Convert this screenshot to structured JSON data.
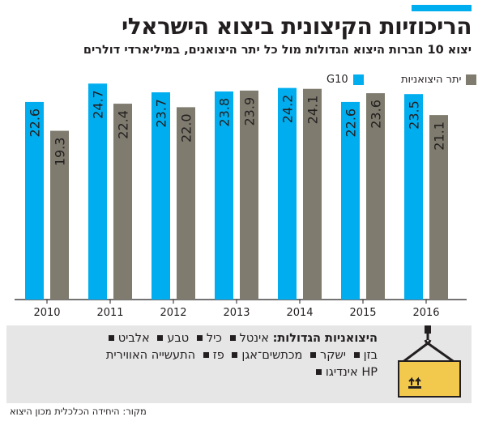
{
  "header": {
    "title": "הריכוזיות הקיצונית ביצוא הישראלי",
    "subtitle": "יצוא 10 חברות היצוא הגדולות מול כל יתר היצואנים, במיליארדי דולרים"
  },
  "colors": {
    "accent": "#00aeef",
    "series_g10": "#00aeef",
    "series_other": "#7f7b6e",
    "panel": "#e6e6e6",
    "crate": "#f2c94c"
  },
  "chart_data": {
    "type": "bar",
    "title": "הריכוזיות הקיצונית ביצוא הישראלי",
    "subtitle": "יצוא 10 חברות היצוא הגדולות מול כל יתר היצואנים, במיליארדי דולרים",
    "categories": [
      "2010",
      "2011",
      "2012",
      "2013",
      "2014",
      "2015",
      "2016"
    ],
    "series": [
      {
        "name": "G10",
        "values": [
          22.6,
          24.7,
          23.7,
          23.8,
          24.2,
          22.6,
          23.5
        ]
      },
      {
        "name": "יתר היצואניות",
        "values": [
          19.3,
          22.4,
          22.0,
          23.9,
          24.1,
          23.6,
          21.1
        ]
      }
    ],
    "ylim": [
      0,
      26
    ],
    "grid": false,
    "legend_position": "top-right"
  },
  "legend": {
    "g10_label": "G10",
    "other_label": "יתר היצואניות"
  },
  "exporters": {
    "heading": "היצואניות הגדולות:",
    "row1": [
      "אינטל",
      "כיל",
      "טבע",
      "אלביט"
    ],
    "row2": [
      "בזן",
      "ישקר",
      "מכתשים־אגן",
      "פז",
      "התעשייה האווירית"
    ],
    "row3": [
      "HP אינדיגו"
    ],
    "icon": "cargo-crate-icon"
  },
  "footer": {
    "source": "מקור: היחידה הכלכלית מכון היצוא"
  }
}
